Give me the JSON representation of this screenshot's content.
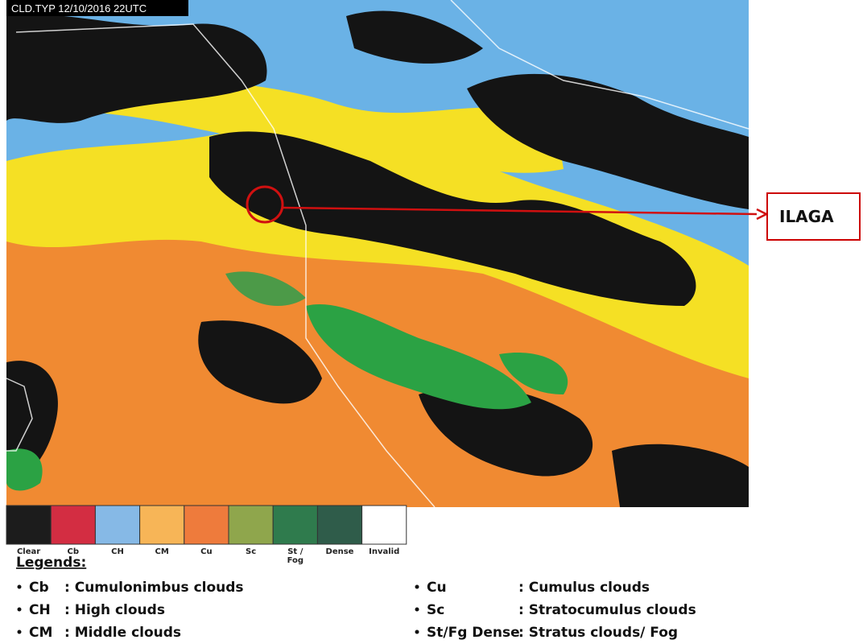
{
  "header": "CLD.TYP 12/10/2016 22UTC",
  "annotation": "ILAGA",
  "colorbar": [
    {
      "lines": [
        "Clear"
      ],
      "color": "#1c1c1c"
    },
    {
      "lines": [
        "Cb"
      ],
      "color": "#d32d42"
    },
    {
      "lines": [
        "CH"
      ],
      "color": "#86b9e6"
    },
    {
      "lines": [
        "CM"
      ],
      "color": "#f7b557"
    },
    {
      "lines": [
        "Cu"
      ],
      "color": "#ee7b3c"
    },
    {
      "lines": [
        "Sc"
      ],
      "color": "#8fa64c"
    },
    {
      "lines": [
        "St /",
        "Fog"
      ],
      "color": "#2f7b4d"
    },
    {
      "lines": [
        "Dense"
      ],
      "color": "#2f5c4a"
    },
    {
      "lines": [
        "Invalid"
      ],
      "color": "#ffffff"
    }
  ],
  "legend_title": "Legends:",
  "legend_left": [
    {
      "abbr": "Cb",
      "desc": ": Cumulonimbus clouds"
    },
    {
      "abbr": "CH",
      "desc": ": High clouds"
    },
    {
      "abbr": "CM",
      "desc": ": Middle clouds"
    }
  ],
  "legend_right": [
    {
      "abbr": "Cu",
      "desc": ": Cumulus clouds"
    },
    {
      "abbr": "Sc",
      "desc": ": Stratocumulus clouds"
    },
    {
      "abbr": "St/Fg Dense",
      "desc": ": Stratus clouds/ Fog"
    }
  ]
}
